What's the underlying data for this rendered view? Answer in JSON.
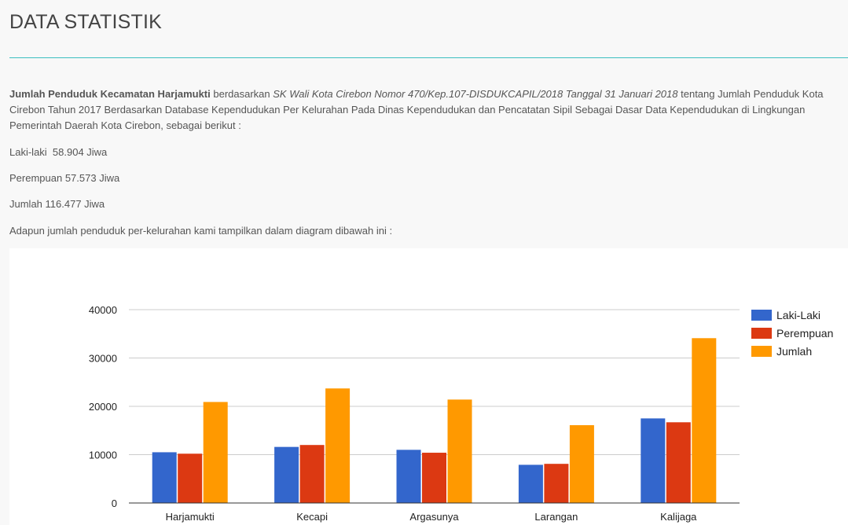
{
  "header": {
    "title": "DATA STATISTIK"
  },
  "intro": {
    "bold_lead": "Jumlah Penduduk Kecamatan Harjamukti",
    "text_a": " berdasarkan ",
    "italic_ref": "SK Wali Kota Cirebon Nomor 470/Kep.107-DISDUKCAPIL/2018 Tanggal 31 Januari 2018",
    "text_b": " tentang Jumlah Penduduk Kota Cirebon Tahun 2017 Berdasarkan Database Kependudukan Per Kelurahan Pada Dinas Kependudukan dan Pencatatan Sipil Sebagai Dasar Data Kependudukan di Lingkungan Pemerintah Daerah Kota Cirebon, sebagai berikut :"
  },
  "stats": {
    "male": "Laki-laki  58.904 Jiwa",
    "female": "Perempuan 57.573 Jiwa",
    "total": "Jumlah 116.477 Jiwa"
  },
  "chart_caption": "Adapun jumlah penduduk per-kelurahan kami tampilkan dalam diagram dibawah ini :",
  "colors": {
    "laki": "#3366cc",
    "perempuan": "#dc3912",
    "jumlah": "#ff9900",
    "grid": "#cccccc",
    "baseline": "#333333"
  },
  "chart_data": {
    "type": "bar",
    "categories": [
      "Harjamukti",
      "Kecapi",
      "Argasunya",
      "Larangan",
      "Kalijaga"
    ],
    "series": [
      {
        "name": "Laki-Laki",
        "values": [
          10500,
          11600,
          11000,
          7900,
          17500
        ]
      },
      {
        "name": "Perempuan",
        "values": [
          10200,
          12000,
          10400,
          8100,
          16700
        ]
      },
      {
        "name": "Jumlah",
        "values": [
          20900,
          23700,
          21400,
          16100,
          34100
        ]
      }
    ],
    "ylim": [
      0,
      40000
    ],
    "yticks": [
      "0",
      "10000",
      "20000",
      "30000",
      "40000"
    ],
    "tick_values": [
      0,
      10000,
      20000,
      30000,
      40000
    ],
    "grid": true,
    "legend_position": "right"
  }
}
